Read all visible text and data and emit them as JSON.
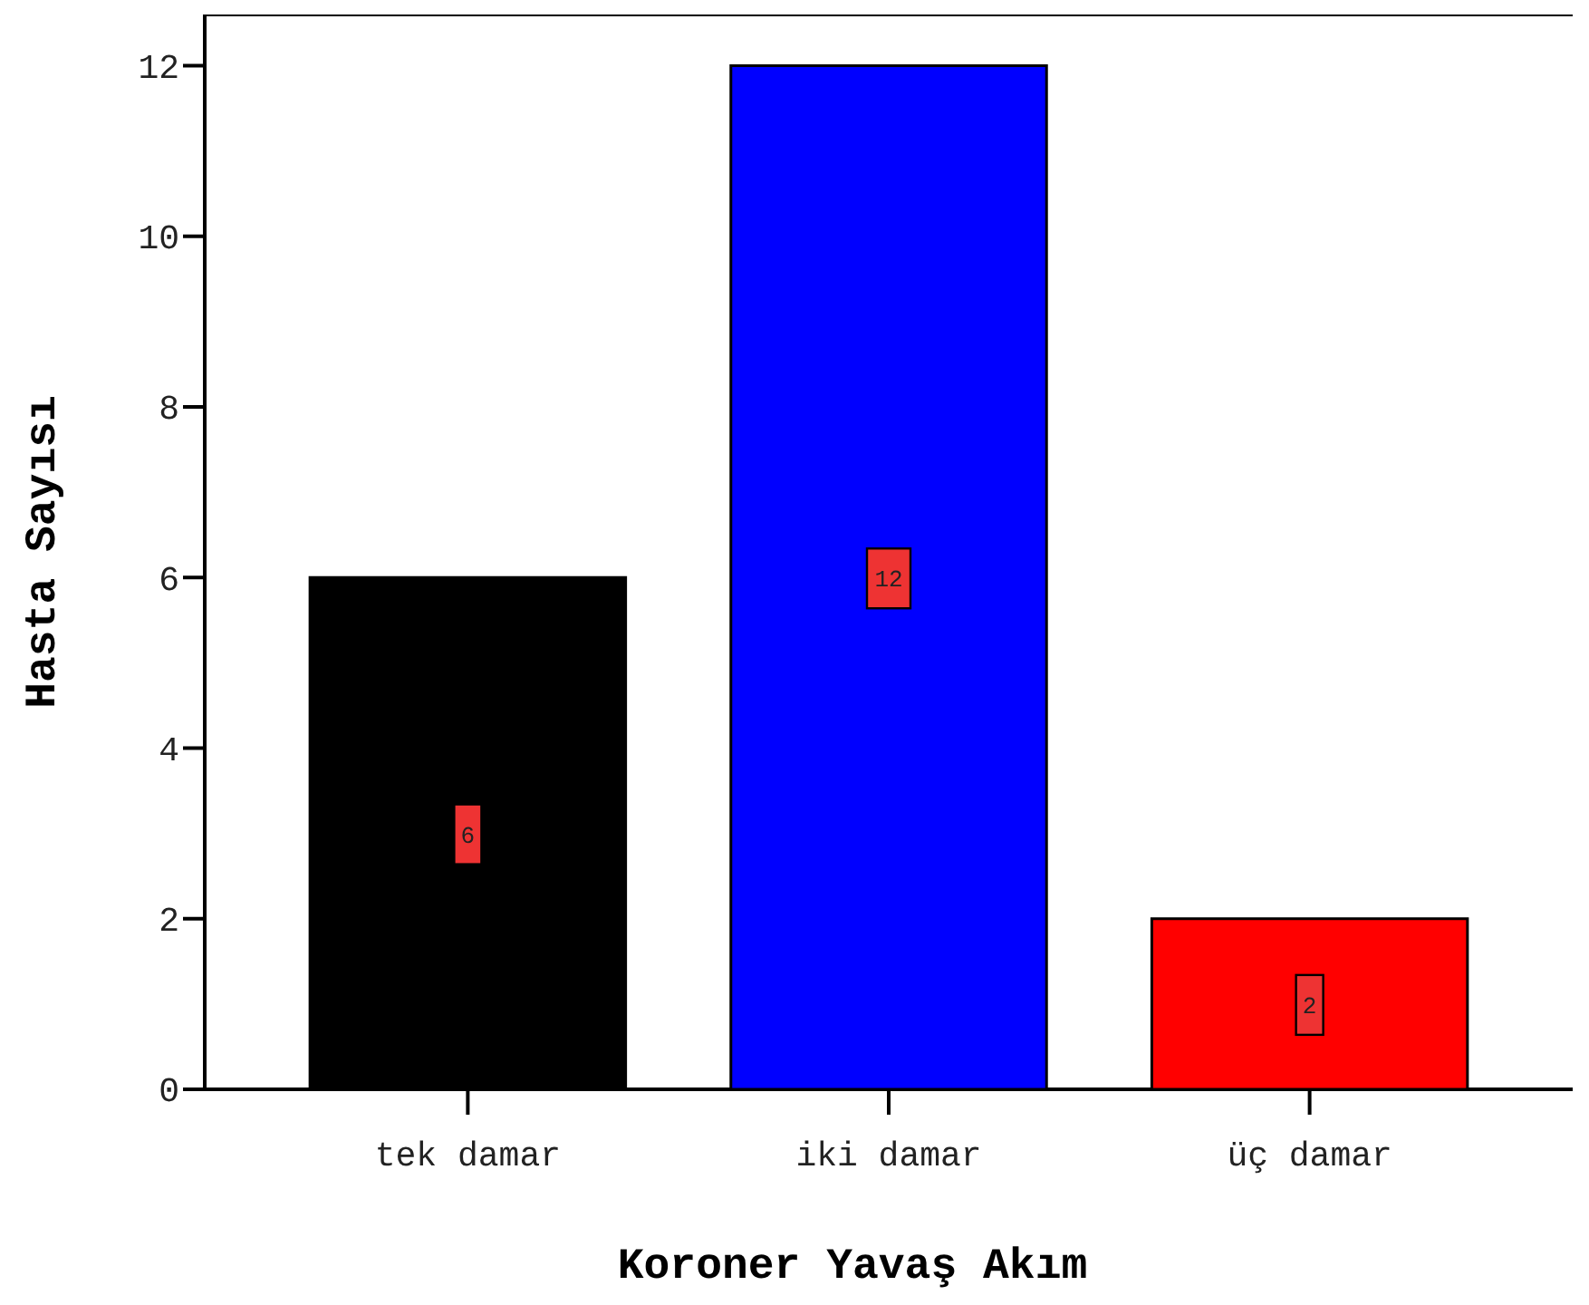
{
  "chart_data": {
    "type": "bar",
    "xlabel": "Koroner Yavaş Akım",
    "ylabel": "Hasta Sayısı",
    "categories": [
      "tek damar",
      "iki damar",
      "üç damar"
    ],
    "values": [
      6,
      12,
      2
    ],
    "colors": [
      "#000000",
      "#0000ff",
      "#ff0000"
    ],
    "ylim": [
      0,
      12.6
    ],
    "yticks": [
      0,
      2,
      4,
      6,
      8,
      10,
      12
    ],
    "grid": false,
    "data_labels": true
  }
}
